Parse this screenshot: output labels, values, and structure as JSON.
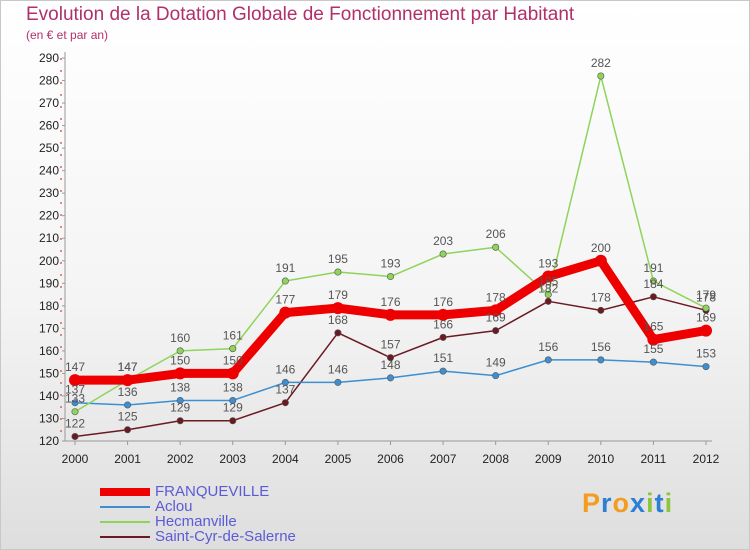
{
  "title": "Evolution de la Dotation Globale de Fonctionnement par Habitant",
  "subtitle": "(en € et par an)",
  "logo": {
    "text": "Proxiti",
    "letters": [
      "P",
      "r",
      "o",
      "x",
      "i",
      "t",
      "i"
    ],
    "colors": [
      "#f39c1f",
      "#2b7fd4",
      "#f39c1f",
      "#2b7fd4",
      "#8cc63f",
      "#2b7fd4",
      "#8cc63f"
    ]
  },
  "chart_data": {
    "type": "line",
    "title": "Evolution de la Dotation Globale de Fonctionnement par Habitant",
    "subtitle": "(en € et par an)",
    "xlabel": "",
    "ylabel": "",
    "ylim": [
      120,
      290
    ],
    "ytick_step": 10,
    "grid": false,
    "legend_position": "bottom-left",
    "x": [
      "2000",
      "2001",
      "2002",
      "2003",
      "2004",
      "2005",
      "2006",
      "2007",
      "2008",
      "2009",
      "2010",
      "2011",
      "2012"
    ],
    "series": [
      {
        "name": "Saint-Cyr-de-Salerne",
        "color": "#6b1a22",
        "values": [
          122,
          125,
          129,
          129,
          137,
          168,
          157,
          166,
          169,
          182,
          178,
          184,
          178
        ]
      },
      {
        "name": "Aclou",
        "color": "#3d8fd1",
        "values": [
          137,
          136,
          138,
          138,
          146,
          146,
          148,
          151,
          149,
          156,
          156,
          155,
          153
        ]
      },
      {
        "name": "Hecmanville",
        "color": "#8ed45a",
        "values": [
          133,
          147,
          160,
          161,
          191,
          195,
          193,
          203,
          206,
          185,
          282,
          191,
          179
        ]
      },
      {
        "name": "FRANQUEVILLE",
        "color": "#ee0000",
        "values": [
          147,
          147,
          150,
          150,
          177,
          179,
          176,
          176,
          178,
          193,
          200,
          165,
          169
        ]
      }
    ],
    "legend_order": [
      "FRANQUEVILLE",
      "Aclou",
      "Hecmanville",
      "Saint-Cyr-de-Salerne"
    ]
  }
}
